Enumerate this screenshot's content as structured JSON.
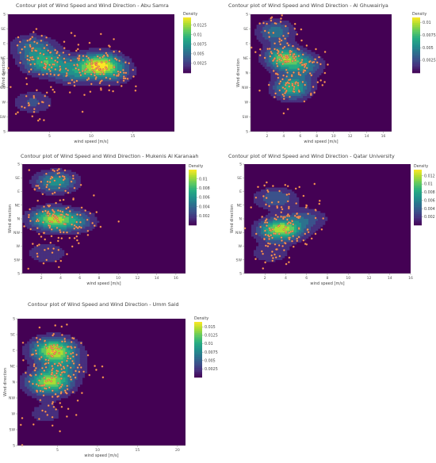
{
  "colors": {
    "background": "#440154",
    "point_fill": "#f4a259",
    "point_stroke": "#b83a3a",
    "colorscale": [
      "#440154",
      "#472f7d",
      "#3b528b",
      "#2c728e",
      "#21918c",
      "#27ad81",
      "#5ec962",
      "#aadc32",
      "#fde725"
    ]
  },
  "chart_data": [
    {
      "type": "contour",
      "title": "Contour plot of Wind Speed and Wind Direction -  Abu Samra",
      "xlabel": "wind speed [m/s]",
      "ylabel": "Wind direction",
      "xlim": [
        0,
        20
      ],
      "xticks": [
        5,
        10,
        15
      ],
      "yticks": [
        "S",
        "SE",
        "E",
        "NE",
        "N",
        "NW",
        "W",
        "SW",
        "S"
      ],
      "colorbar_title": "Density",
      "colorbar_ticks": [
        "0.0125",
        "0.01",
        "0.0075",
        "0.005",
        "0.0025"
      ],
      "colorbar_max": 0.0145,
      "peaks": [
        {
          "x": 4.5,
          "dir": 3.3,
          "amp": 0.01
        },
        {
          "x": 3.0,
          "dir": 2.2,
          "amp": 0.006
        },
        {
          "x": 11.0,
          "dir": 3.4,
          "amp": 0.013
        },
        {
          "x": 12.5,
          "dir": 4.0,
          "amp": 0.005
        },
        {
          "x": 8.0,
          "dir": 4.0,
          "amp": 0.006
        },
        {
          "x": 3.0,
          "dir": 6.0,
          "amp": 0.004
        }
      ]
    },
    {
      "type": "contour",
      "title": "Contour plot of Wind Speed and Wind Direction -  Al Ghuwairiya",
      "xlabel": "wind speed [m/s]",
      "ylabel": "Wind direction",
      "xlim": [
        0,
        17
      ],
      "xticks": [
        2,
        4,
        6,
        8,
        10,
        12,
        14,
        16
      ],
      "yticks": [
        "S",
        "SE",
        "E",
        "NE",
        "N",
        "NW",
        "W",
        "SW",
        "S"
      ],
      "colorbar_title": "Density",
      "colorbar_ticks": [
        "0.01",
        "0.0075",
        "0.005",
        "0.0025"
      ],
      "colorbar_max": 0.011,
      "peaks": [
        {
          "x": 4.0,
          "dir": 3.0,
          "amp": 0.009
        },
        {
          "x": 5.0,
          "dir": 5.0,
          "amp": 0.008
        },
        {
          "x": 3.0,
          "dir": 1.2,
          "amp": 0.005
        },
        {
          "x": 6.5,
          "dir": 3.5,
          "amp": 0.005
        }
      ]
    },
    {
      "type": "contour",
      "title": "Contour plot of Wind Speed and Wind Direction -  Mukenis Al Karanaah",
      "xlabel": "wind speed [m/s]",
      "ylabel": "Wind direction",
      "xlim": [
        0,
        17
      ],
      "xticks": [
        2,
        4,
        6,
        8,
        10,
        12,
        14,
        16
      ],
      "yticks": [
        "S",
        "SE",
        "E",
        "NE",
        "N",
        "NW",
        "W",
        "SW",
        "S"
      ],
      "colorbar_title": "Density",
      "colorbar_ticks": [
        "0.01",
        "0.008",
        "0.006",
        "0.004",
        "0.002"
      ],
      "colorbar_max": 0.012,
      "peaks": [
        {
          "x": 3.0,
          "dir": 4.0,
          "amp": 0.01
        },
        {
          "x": 3.5,
          "dir": 1.3,
          "amp": 0.007
        },
        {
          "x": 5.5,
          "dir": 4.2,
          "amp": 0.005
        },
        {
          "x": 2.5,
          "dir": 6.5,
          "amp": 0.003
        }
      ]
    },
    {
      "type": "contour",
      "title": "Contour plot of Wind Speed and Wind Direction -  Qatar University",
      "xlabel": "wind speed [m/s]",
      "ylabel": "Wind direction",
      "xlim": [
        0,
        16
      ],
      "xticks": [
        2,
        4,
        6,
        8,
        10,
        12,
        14,
        16
      ],
      "yticks": [
        "S",
        "SE",
        "E",
        "NE",
        "N",
        "NW",
        "W",
        "SW",
        "S"
      ],
      "colorbar_title": "Density",
      "colorbar_ticks": [
        "0.012",
        "0.01",
        "0.008",
        "0.006",
        "0.004",
        "0.002"
      ],
      "colorbar_max": 0.0135,
      "peaks": [
        {
          "x": 3.5,
          "dir": 4.8,
          "amp": 0.013
        },
        {
          "x": 3.0,
          "dir": 2.5,
          "amp": 0.005
        },
        {
          "x": 6.0,
          "dir": 4.0,
          "amp": 0.004
        },
        {
          "x": 2.5,
          "dir": 6.5,
          "amp": 0.003
        }
      ]
    },
    {
      "type": "contour",
      "title": "Contour plot of Wind Speed and Wind Direction -  Umm Said",
      "xlabel": "wind speed [m/s]",
      "ylabel": "Wind direction",
      "xlim": [
        0,
        21
      ],
      "xticks": [
        5,
        10,
        15,
        20
      ],
      "yticks": [
        "S",
        "SE",
        "E",
        "NE",
        "N",
        "NW",
        "W",
        "SW",
        "S"
      ],
      "colorbar_title": "Density",
      "colorbar_ticks": [
        "0.015",
        "0.0125",
        "0.01",
        "0.0075",
        "0.005",
        "0.0025"
      ],
      "colorbar_max": 0.0165,
      "peaks": [
        {
          "x": 4.5,
          "dir": 2.0,
          "amp": 0.016
        },
        {
          "x": 4.0,
          "dir": 4.0,
          "amp": 0.015
        },
        {
          "x": 6.0,
          "dir": 3.0,
          "amp": 0.005
        },
        {
          "x": 3.5,
          "dir": 6.0,
          "amp": 0.003
        }
      ]
    }
  ]
}
